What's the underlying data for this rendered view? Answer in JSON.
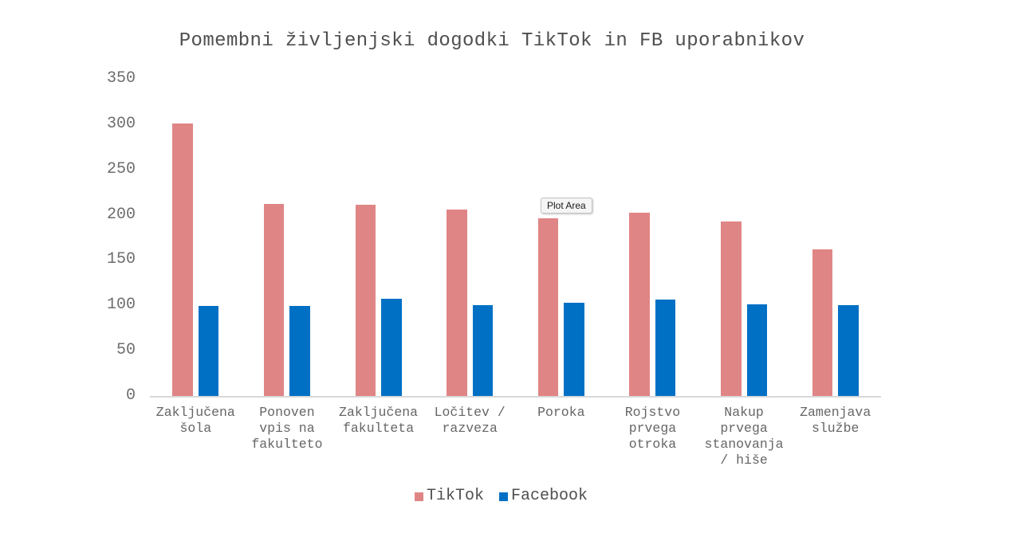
{
  "chart_data": {
    "type": "bar",
    "title": "Pomembni življenjski dogodki TikTok in FB uporabnikov",
    "categories": [
      "Zaključena šola",
      "Ponoven vpis na fakulteto",
      "Zaključena fakulteta",
      "Ločitev / razveza",
      "Poroka",
      "Rojstvo prvega otroka",
      "Nakup prvega stanovanja / hiše",
      "Zamenjava službe"
    ],
    "category_lines": [
      [
        "Zaključena",
        "šola"
      ],
      [
        "Ponoven",
        "vpis na",
        "fakulteto"
      ],
      [
        "Zaključena",
        "fakulteta"
      ],
      [
        "Ločitev /",
        "razveza"
      ],
      [
        "Poroka"
      ],
      [
        "Rojstvo",
        "prvega",
        "otroka"
      ],
      [
        "Nakup",
        "prvega",
        "stanovanja",
        "/ hiše"
      ],
      [
        "Zamenjava",
        "službe"
      ]
    ],
    "series": [
      {
        "name": "TikTok",
        "color": "#E08585",
        "values": [
          301,
          212,
          211,
          206,
          196,
          202,
          193,
          162
        ]
      },
      {
        "name": "Facebook",
        "color": "#0070C5",
        "values": [
          99,
          99,
          107,
          100,
          103,
          106,
          101,
          100
        ]
      }
    ],
    "xlabel": "",
    "ylabel": "",
    "ylim": [
      0,
      350
    ],
    "yticks": [
      350,
      300,
      250,
      200,
      150,
      100,
      50,
      0
    ],
    "grid": false,
    "legend_position": "bottom"
  },
  "tooltip": {
    "text": "Plot Area"
  },
  "colors": {
    "background": "#ffffff",
    "axis_line": "#D9D9D9",
    "axis_text": "#6E6E6E",
    "title_text": "#4F4F4F",
    "legend_text": "#4F4F4F",
    "tooltip_bg": "#F5F5F5",
    "tooltip_border": "#C4C4C4"
  }
}
